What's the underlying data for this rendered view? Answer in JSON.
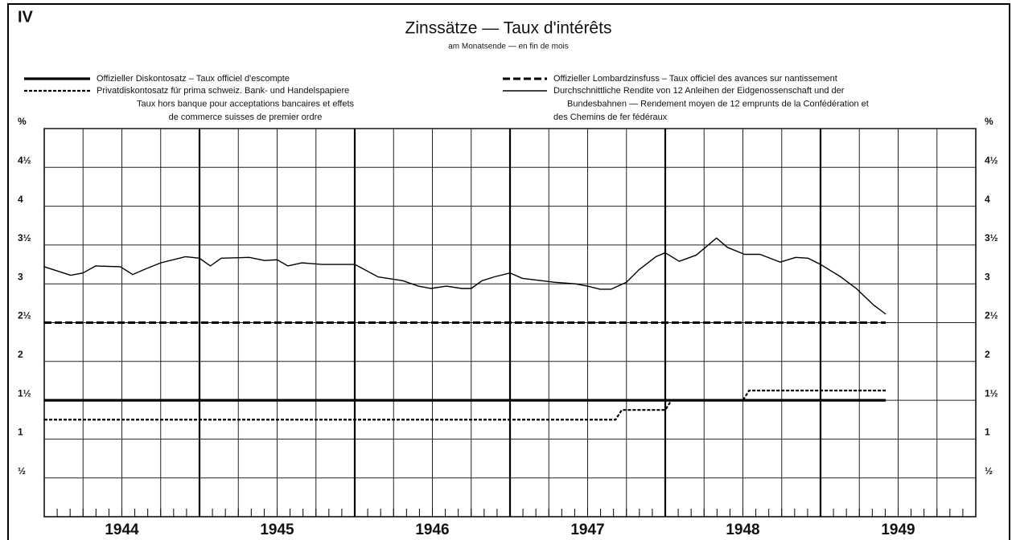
{
  "chart_data": {
    "type": "line",
    "label": "IV",
    "title": "Zinssätze — Taux d'intérêts",
    "subtitle": "am Monatsende — en fin de mois",
    "xlim": [
      1944,
      1950
    ],
    "xticks": [
      {
        "value": 1944,
        "label": "1944"
      },
      {
        "value": 1945,
        "label": "1945"
      },
      {
        "value": 1946,
        "label": "1946"
      },
      {
        "value": 1947,
        "label": "1947"
      },
      {
        "value": 1948,
        "label": "1948"
      },
      {
        "value": 1949,
        "label": "1949"
      }
    ],
    "ylim": [
      0,
      5
    ],
    "yticks": [
      {
        "value": 0.5,
        "label": "½"
      },
      1,
      {
        "value": 1.5,
        "label": "1½"
      },
      2,
      {
        "value": 2.5,
        "label": "2½"
      },
      3,
      {
        "value": 3.5,
        "label": "3½"
      },
      4,
      {
        "value": 4.5,
        "label": "4½"
      },
      {
        "value": 5,
        "label": "%"
      }
    ],
    "grid": true,
    "series": [
      {
        "name": [
          "Offizieller Diskontosatz – Taux officiel d'escompte"
        ],
        "color": "#000000",
        "width": 3.2,
        "dash": "none",
        "x": [
          1944.0,
          1949.42
        ],
        "values": [
          1.5,
          1.5
        ]
      },
      {
        "name": [
          "Offizieller Lombardzinsfuss – Taux officiel des avances sur nantissement"
        ],
        "color": "#000000",
        "width": 3,
        "dash": "9,4",
        "x": [
          1944.0,
          1949.42
        ],
        "values": [
          2.5,
          2.5
        ]
      },
      {
        "name": [
          "Privatdiskontosatz für prima schweiz. Bank- und Handelspapiere",
          "Taux hors banque pour acceptations bancaires et effets",
          "de commerce suisses de premier ordre"
        ],
        "color": "#000000",
        "width": 2.2,
        "dash": "4,2",
        "x": [
          1944.0,
          1947.68,
          1947.72,
          1948.0,
          1948.04,
          1948.5,
          1948.54,
          1949.42
        ],
        "values": [
          1.25,
          1.25,
          1.375,
          1.375,
          1.5,
          1.5,
          1.625,
          1.625
        ]
      },
      {
        "name": [
          "Durchschnittliche Rendite von 12 Anleihen der Eidgenossenschaft und der",
          "Bundesbahnen — Rendement moyen de 12 emprunts de la Confédération et",
          "des Chemins de fer fédéraux"
        ],
        "color": "#000000",
        "width": 1.4,
        "dash": "none",
        "x": [
          1944.0,
          1944.17,
          1944.25,
          1944.33,
          1944.49,
          1944.57,
          1944.65,
          1944.75,
          1944.91,
          1945.0,
          1945.07,
          1945.14,
          1945.32,
          1945.42,
          1945.5,
          1945.57,
          1945.66,
          1945.79,
          1946.0,
          1946.15,
          1946.31,
          1946.41,
          1946.49,
          1946.59,
          1946.69,
          1946.75,
          1946.82,
          1946.9,
          1947.0,
          1947.08,
          1947.29,
          1947.42,
          1947.5,
          1947.58,
          1947.65,
          1947.75,
          1947.83,
          1947.94,
          1948.0,
          1948.09,
          1948.2,
          1948.33,
          1948.4,
          1948.51,
          1948.61,
          1948.74,
          1948.84,
          1948.92,
          1949.0,
          1949.13,
          1949.23,
          1949.34,
          1949.42
        ],
        "values": [
          3.22,
          3.11,
          3.14,
          3.23,
          3.22,
          3.12,
          3.19,
          3.27,
          3.35,
          3.33,
          3.23,
          3.33,
          3.34,
          3.3,
          3.31,
          3.23,
          3.27,
          3.25,
          3.25,
          3.09,
          3.04,
          2.97,
          2.94,
          2.97,
          2.94,
          2.94,
          3.04,
          3.09,
          3.14,
          3.07,
          3.02,
          3.0,
          2.97,
          2.93,
          2.93,
          3.02,
          3.18,
          3.35,
          3.4,
          3.29,
          3.37,
          3.59,
          3.47,
          3.38,
          3.38,
          3.28,
          3.34,
          3.33,
          3.25,
          3.09,
          2.94,
          2.73,
          2.61
        ]
      }
    ]
  }
}
